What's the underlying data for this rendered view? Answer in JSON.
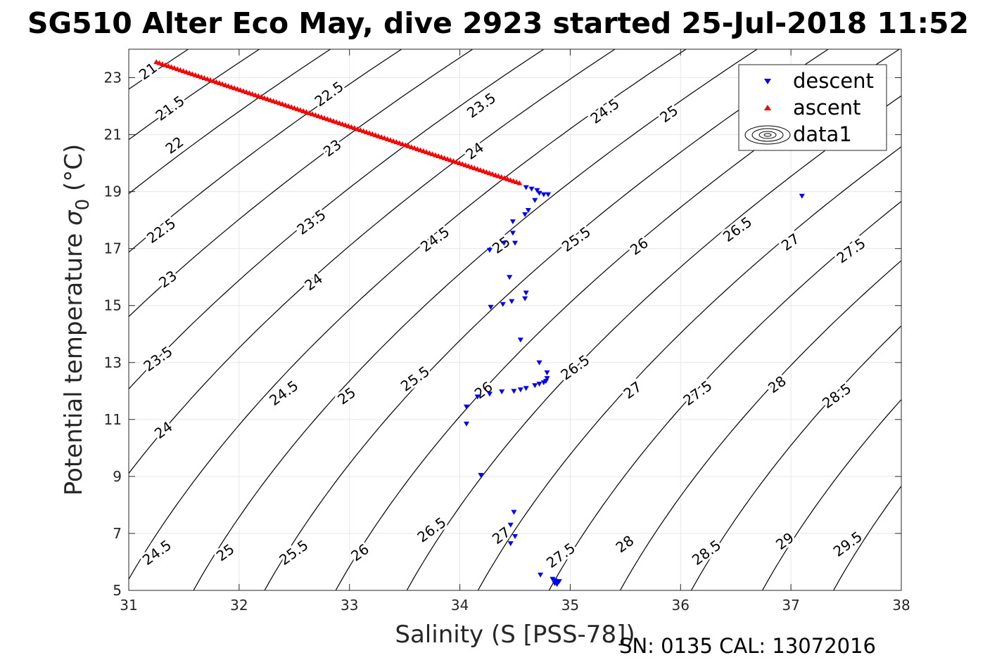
{
  "chart_data": {
    "type": "scatter",
    "title": "SG510 Alter Eco May, dive 2923 started 25-Jul-2018 11:52",
    "xlabel": "Salinity (S [PSS-78])",
    "ylabel_main": "Potential temperature ",
    "ylabel_sigma": "σ",
    "ylabel_sub": "0",
    "ylabel_unit": " (°C)",
    "footer": "SN: 0135  CAL: 13072016",
    "xlim": [
      31,
      38
    ],
    "ylim": [
      5,
      24
    ],
    "x_ticks": [
      31,
      32,
      33,
      34,
      35,
      36,
      37,
      38
    ],
    "y_ticks": [
      5,
      7,
      9,
      11,
      13,
      15,
      17,
      19,
      21,
      23
    ],
    "grid": true,
    "legend_position": "top-right",
    "legend": [
      {
        "label": "descent",
        "color": "#0000ff",
        "marker": "triangle-down"
      },
      {
        "label": "ascent",
        "color": "#ff0000",
        "marker": "triangle-up"
      },
      {
        "label": "data1",
        "color": "#000000",
        "marker": "contour"
      }
    ],
    "contour_levels": [
      21,
      21.5,
      22,
      22.5,
      23,
      23.5,
      24,
      24.5,
      25,
      25.5,
      26,
      26.5,
      27,
      27.5,
      28,
      28.5,
      29,
      29.5
    ],
    "series": [
      {
        "name": "descent",
        "color": "#0000ff",
        "marker": "triangle-down",
        "points": [
          [
            34.6,
            19.15
          ],
          [
            34.65,
            19.1
          ],
          [
            34.7,
            19.05
          ],
          [
            34.72,
            18.95
          ],
          [
            34.76,
            18.9
          ],
          [
            34.8,
            18.9
          ],
          [
            34.68,
            18.7
          ],
          [
            34.62,
            18.35
          ],
          [
            34.59,
            18.2
          ],
          [
            34.48,
            17.95
          ],
          [
            34.48,
            17.55
          ],
          [
            34.5,
            17.2
          ],
          [
            34.4,
            17.2
          ],
          [
            34.27,
            16.95
          ],
          [
            34.45,
            16.0
          ],
          [
            34.6,
            15.45
          ],
          [
            34.59,
            15.25
          ],
          [
            34.47,
            15.15
          ],
          [
            34.39,
            15.05
          ],
          [
            34.28,
            14.95
          ],
          [
            34.55,
            13.8
          ],
          [
            34.72,
            13.0
          ],
          [
            34.79,
            12.65
          ],
          [
            34.79,
            12.45
          ],
          [
            34.78,
            12.35
          ],
          [
            34.76,
            12.3
          ],
          [
            34.72,
            12.25
          ],
          [
            34.68,
            12.2
          ],
          [
            34.6,
            12.1
          ],
          [
            34.55,
            12.05
          ],
          [
            34.49,
            12.0
          ],
          [
            34.38,
            11.98
          ],
          [
            34.27,
            11.9
          ],
          [
            34.16,
            11.8
          ],
          [
            34.06,
            11.45
          ],
          [
            34.06,
            10.85
          ],
          [
            34.19,
            9.05
          ],
          [
            34.49,
            7.75
          ],
          [
            34.46,
            7.3
          ],
          [
            34.5,
            6.9
          ],
          [
            34.46,
            6.65
          ],
          [
            34.73,
            5.55
          ],
          [
            34.84,
            5.4
          ],
          [
            34.86,
            5.35
          ],
          [
            34.88,
            5.3
          ],
          [
            34.9,
            5.32
          ],
          [
            34.86,
            5.25
          ],
          [
            34.88,
            5.22
          ]
        ]
      },
      {
        "name": "ascent",
        "color": "#ff0000",
        "marker": "triangle-up",
        "start": [
          31.25,
          23.55
        ],
        "end": [
          34.54,
          19.3
        ],
        "count": 122
      },
      {
        "name": "descent",
        "color": "#0000ff",
        "marker": "triangle-down",
        "points": [
          [
            37.1,
            18.85
          ]
        ]
      }
    ],
    "contour_labels": [
      {
        "text": "21",
        "x": 31.18,
        "y": 23.2
      },
      {
        "text": "21.5",
        "x": 31.38,
        "y": 21.9
      },
      {
        "text": "22",
        "x": 31.42,
        "y": 20.6
      },
      {
        "text": "22.5",
        "x": 31.3,
        "y": 17.6
      },
      {
        "text": "23",
        "x": 31.36,
        "y": 15.9
      },
      {
        "text": "23.5",
        "x": 31.27,
        "y": 13.1
      },
      {
        "text": "24",
        "x": 31.32,
        "y": 10.6
      },
      {
        "text": "24.5",
        "x": 31.26,
        "y": 6.3
      },
      {
        "text": "25",
        "x": 31.88,
        "y": 6.3
      },
      {
        "text": "25.5",
        "x": 32.5,
        "y": 6.3
      },
      {
        "text": "26",
        "x": 33.1,
        "y": 6.3
      },
      {
        "text": "26.5",
        "x": 33.75,
        "y": 7.1
      },
      {
        "text": "27",
        "x": 34.38,
        "y": 6.9
      },
      {
        "text": "27.5",
        "x": 34.92,
        "y": 6.2
      },
      {
        "text": "28",
        "x": 35.5,
        "y": 6.6
      },
      {
        "text": "28.5",
        "x": 36.24,
        "y": 6.3
      },
      {
        "text": "29",
        "x": 36.95,
        "y": 6.7
      },
      {
        "text": "29.5",
        "x": 37.52,
        "y": 6.6
      },
      {
        "text": "22.5",
        "x": 32.82,
        "y": 22.4
      },
      {
        "text": "23",
        "x": 32.85,
        "y": 20.5
      },
      {
        "text": "23.5",
        "x": 32.66,
        "y": 17.9
      },
      {
        "text": "24",
        "x": 32.68,
        "y": 15.8
      },
      {
        "text": "24.5",
        "x": 32.41,
        "y": 11.9
      },
      {
        "text": "25",
        "x": 32.98,
        "y": 11.8
      },
      {
        "text": "25.5",
        "x": 33.6,
        "y": 12.4
      },
      {
        "text": "26",
        "x": 34.22,
        "y": 12.0
      },
      {
        "text": "26.5",
        "x": 35.05,
        "y": 12.8
      },
      {
        "text": "27",
        "x": 35.57,
        "y": 12.0
      },
      {
        "text": "27.5",
        "x": 36.16,
        "y": 11.9
      },
      {
        "text": "28",
        "x": 36.88,
        "y": 12.2
      },
      {
        "text": "28.5",
        "x": 37.42,
        "y": 11.8
      },
      {
        "text": "23.5",
        "x": 34.2,
        "y": 22.0
      },
      {
        "text": "24",
        "x": 34.14,
        "y": 20.4
      },
      {
        "text": "24.5",
        "x": 33.78,
        "y": 17.3
      },
      {
        "text": "25",
        "x": 34.38,
        "y": 17.1
      },
      {
        "text": "25.5",
        "x": 35.06,
        "y": 17.3
      },
      {
        "text": "26",
        "x": 35.63,
        "y": 17.05
      },
      {
        "text": "26.5",
        "x": 36.52,
        "y": 17.65
      },
      {
        "text": "27",
        "x": 37.0,
        "y": 17.2
      },
      {
        "text": "27.5",
        "x": 37.55,
        "y": 16.9
      },
      {
        "text": "24.5",
        "x": 35.32,
        "y": 21.8
      },
      {
        "text": "25",
        "x": 35.9,
        "y": 21.7
      }
    ]
  }
}
